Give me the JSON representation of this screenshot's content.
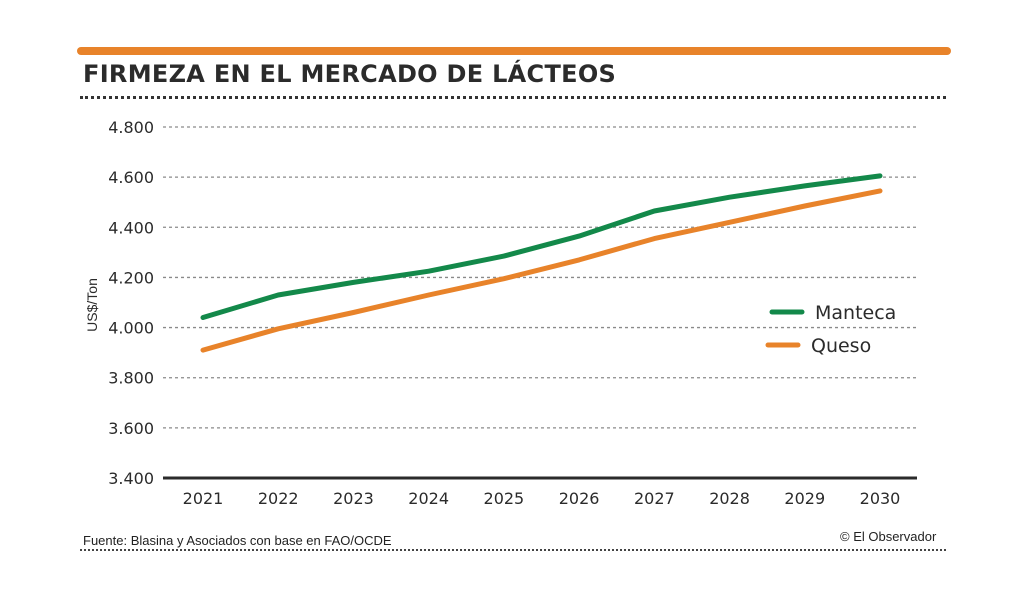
{
  "header": {
    "title": "FIRMEZA EN EL MERCADO DE LÁCTEOS",
    "accent_color": "#e8832a"
  },
  "footer": {
    "source": "Fuente: Blasina y Asociados con base en FAO/OCDE",
    "credit": "© El Observador"
  },
  "chart_data": {
    "type": "line",
    "title": "FIRMEZA EN EL MERCADO DE LÁCTEOS",
    "xlabel": "",
    "ylabel": "US$/Ton",
    "x": [
      "2021",
      "2022",
      "2023",
      "2024",
      "2025",
      "2026",
      "2027",
      "2028",
      "2029",
      "2030"
    ],
    "ylim": [
      3400,
      4800
    ],
    "yticks": [
      3400,
      3600,
      3800,
      4000,
      4200,
      4400,
      4600,
      4800
    ],
    "ytick_labels": [
      "3.400",
      "3.600",
      "3.800",
      "4.000",
      "4.200",
      "4.400",
      "4.600",
      "4.800"
    ],
    "grid": "horizontal-dotted",
    "legend_position": "right",
    "series": [
      {
        "name": "Manteca",
        "color": "#13894a",
        "values": [
          4040,
          4130,
          4180,
          4225,
          4285,
          4365,
          4465,
          4520,
          4565,
          4605
        ]
      },
      {
        "name": "Queso",
        "color": "#e8832a",
        "values": [
          3910,
          3995,
          4060,
          4130,
          4195,
          4270,
          4355,
          4420,
          4485,
          4545
        ]
      }
    ]
  }
}
